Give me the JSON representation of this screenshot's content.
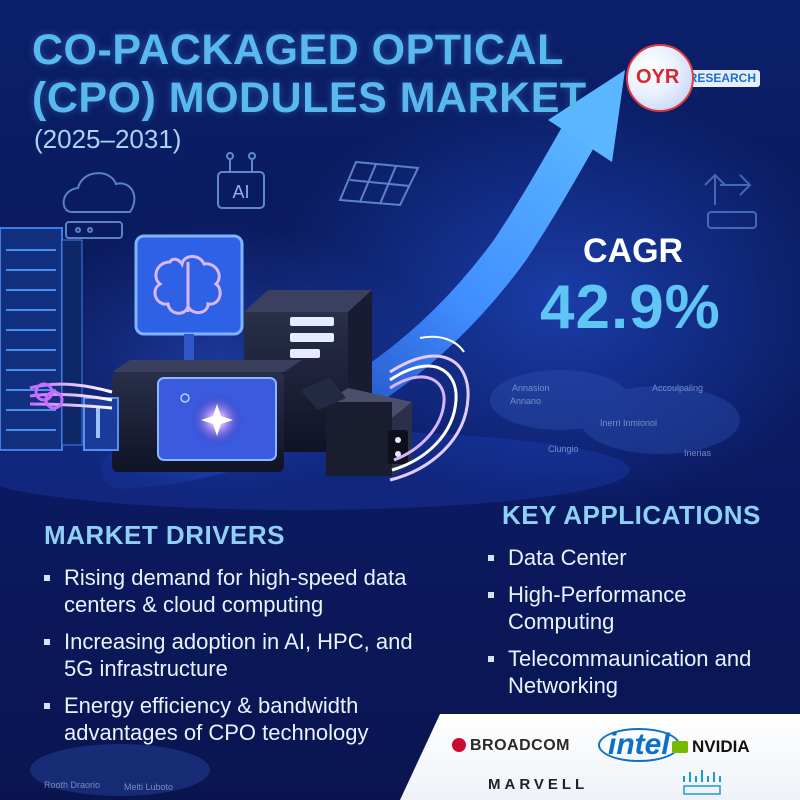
{
  "title_line1": "CO-PACKAGED OPTICAL",
  "title_line2": "(CPO) MODULES MARKET",
  "subtitle": "(2025–2031)",
  "logo": {
    "text": "OYR",
    "tail": "RESEARCH"
  },
  "cagr": {
    "label": "CAGR",
    "value": "42.9%"
  },
  "icons": {
    "ai_chip_label": "AI"
  },
  "market_drivers": {
    "title": "MARKET DRIVERS",
    "items": [
      "Rising demand for high-speed data centers & cloud computing",
      "Increasing adoption in AI, HPC, and 5G infrastructure",
      "Energy efficiency & bandwidth advantages of CPO technology"
    ]
  },
  "key_applications": {
    "title": "KEY APPLICATIONS",
    "items": [
      "Data Center",
      "High-Performance Computing",
      "Telecommaunication and Networking"
    ]
  },
  "brands": {
    "broadcom": "BROADCOM",
    "intel": "intel",
    "nvidia": "NVIDIA",
    "marvell": "MARVELL"
  },
  "map_labels": [
    "Annasion",
    "Annano",
    "Accoulpaling",
    "Inerri Inmionol",
    "Clungio",
    "Inerias",
    "Rooth Draorio",
    "Melti Luboto"
  ],
  "colors": {
    "background": "#0b1f6b",
    "title": "#5ab8f0",
    "accent": "#5fc5f4",
    "text": "#e9f2ff",
    "logo_red": "#d9262a"
  }
}
